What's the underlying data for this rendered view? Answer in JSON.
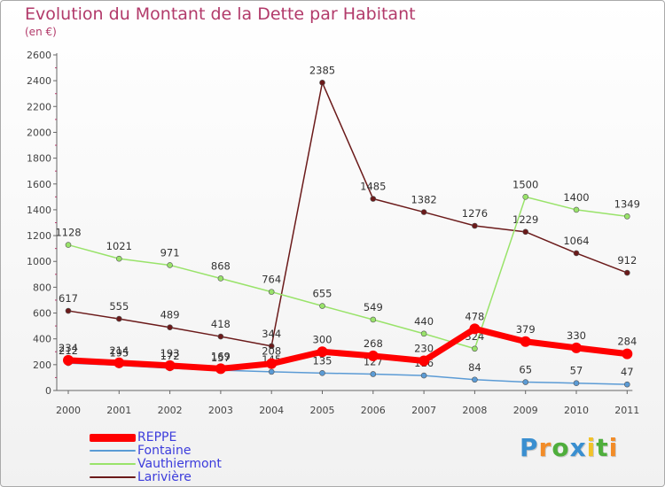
{
  "chart_data": {
    "type": "line",
    "title": "Evolution du Montant de la Dette par Habitant",
    "subtitle": "(en €)",
    "xlabel": "",
    "ylabel": "",
    "x": [
      "2000",
      "2001",
      "2002",
      "2003",
      "2004",
      "2005",
      "2006",
      "2007",
      "2008",
      "2009",
      "2010",
      "2011"
    ],
    "ylim": [
      0,
      2600
    ],
    "yticks": [
      0,
      200,
      400,
      600,
      800,
      1000,
      1200,
      1400,
      1600,
      1800,
      2000,
      2200,
      2400,
      2600
    ],
    "grid": false,
    "legend_position": "bottom-left",
    "series": [
      {
        "name": "Larivière",
        "color": "#6b1a1a",
        "values": [
          617,
          555,
          489,
          418,
          344,
          2385,
          1485,
          1382,
          1276,
          1229,
          1064,
          912
        ]
      },
      {
        "name": "Vauthiermont",
        "color": "#99e36a",
        "values": [
          1128,
          1021,
          971,
          868,
          764,
          655,
          549,
          440,
          324,
          1500,
          1400,
          1349
        ]
      },
      {
        "name": "Fontaine",
        "color": "#5b9bd5",
        "values": [
          212,
          195,
          172,
          157,
          145,
          135,
          127,
          116,
          84,
          65,
          57,
          47
        ]
      },
      {
        "name": "REPPE",
        "color": "#ff0000",
        "values": [
          234,
          214,
          193,
          169,
          208,
          300,
          268,
          230,
          478,
          379,
          330,
          284
        ]
      }
    ]
  },
  "legend": {
    "items": [
      {
        "name": "REPPE",
        "color": "#ff0000"
      },
      {
        "name": "Fontaine",
        "color": "#5b9bd5"
      },
      {
        "name": "Vauthiermont",
        "color": "#99e36a"
      },
      {
        "name": "Larivière",
        "color": "#6b1a1a"
      }
    ]
  },
  "logo": {
    "letters": [
      "P",
      "r",
      "o",
      "x",
      "i",
      "t",
      "i"
    ],
    "colors": [
      "#3a8fd0",
      "#f28c28",
      "#4fae3c",
      "#3a8fd0",
      "#f2c228",
      "#4fae3c",
      "#f28c28"
    ]
  }
}
